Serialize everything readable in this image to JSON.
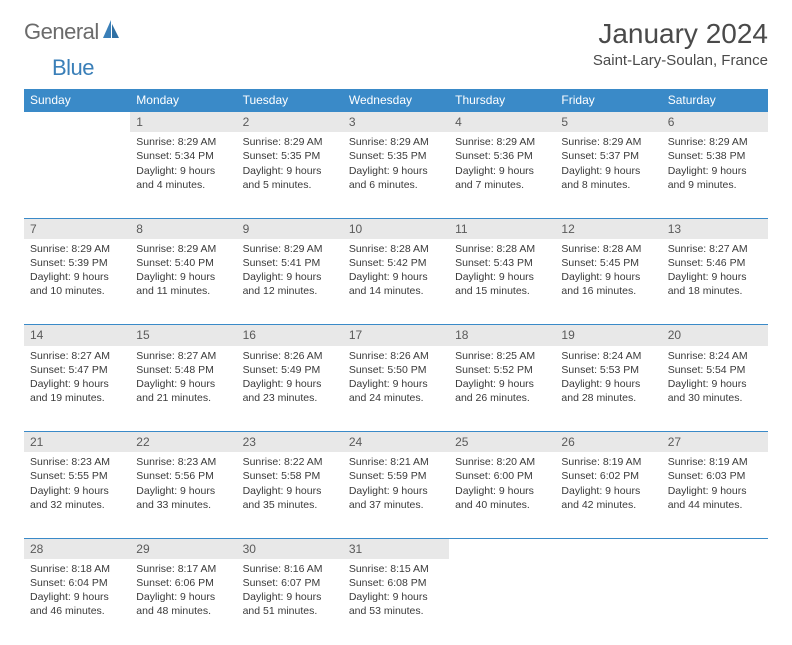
{
  "logo": {
    "part1": "General",
    "part2": "Blue"
  },
  "title": "January 2024",
  "location": "Saint-Lary-Soulan, France",
  "colors": {
    "header_bg": "#3a8ac8",
    "header_text": "#ffffff",
    "daynum_bg": "#e8e8e8",
    "border": "#3a8ac8",
    "text": "#3a3a3a",
    "logo_gray": "#6b6b6b",
    "logo_blue": "#3a7fb8"
  },
  "day_headers": [
    "Sunday",
    "Monday",
    "Tuesday",
    "Wednesday",
    "Thursday",
    "Friday",
    "Saturday"
  ],
  "first_weekday_index": 1,
  "days": [
    {
      "n": 1,
      "sunrise": "8:29 AM",
      "sunset": "5:34 PM",
      "daylight": "9 hours and 4 minutes."
    },
    {
      "n": 2,
      "sunrise": "8:29 AM",
      "sunset": "5:35 PM",
      "daylight": "9 hours and 5 minutes."
    },
    {
      "n": 3,
      "sunrise": "8:29 AM",
      "sunset": "5:35 PM",
      "daylight": "9 hours and 6 minutes."
    },
    {
      "n": 4,
      "sunrise": "8:29 AM",
      "sunset": "5:36 PM",
      "daylight": "9 hours and 7 minutes."
    },
    {
      "n": 5,
      "sunrise": "8:29 AM",
      "sunset": "5:37 PM",
      "daylight": "9 hours and 8 minutes."
    },
    {
      "n": 6,
      "sunrise": "8:29 AM",
      "sunset": "5:38 PM",
      "daylight": "9 hours and 9 minutes."
    },
    {
      "n": 7,
      "sunrise": "8:29 AM",
      "sunset": "5:39 PM",
      "daylight": "9 hours and 10 minutes."
    },
    {
      "n": 8,
      "sunrise": "8:29 AM",
      "sunset": "5:40 PM",
      "daylight": "9 hours and 11 minutes."
    },
    {
      "n": 9,
      "sunrise": "8:29 AM",
      "sunset": "5:41 PM",
      "daylight": "9 hours and 12 minutes."
    },
    {
      "n": 10,
      "sunrise": "8:28 AM",
      "sunset": "5:42 PM",
      "daylight": "9 hours and 14 minutes."
    },
    {
      "n": 11,
      "sunrise": "8:28 AM",
      "sunset": "5:43 PM",
      "daylight": "9 hours and 15 minutes."
    },
    {
      "n": 12,
      "sunrise": "8:28 AM",
      "sunset": "5:45 PM",
      "daylight": "9 hours and 16 minutes."
    },
    {
      "n": 13,
      "sunrise": "8:27 AM",
      "sunset": "5:46 PM",
      "daylight": "9 hours and 18 minutes."
    },
    {
      "n": 14,
      "sunrise": "8:27 AM",
      "sunset": "5:47 PM",
      "daylight": "9 hours and 19 minutes."
    },
    {
      "n": 15,
      "sunrise": "8:27 AM",
      "sunset": "5:48 PM",
      "daylight": "9 hours and 21 minutes."
    },
    {
      "n": 16,
      "sunrise": "8:26 AM",
      "sunset": "5:49 PM",
      "daylight": "9 hours and 23 minutes."
    },
    {
      "n": 17,
      "sunrise": "8:26 AM",
      "sunset": "5:50 PM",
      "daylight": "9 hours and 24 minutes."
    },
    {
      "n": 18,
      "sunrise": "8:25 AM",
      "sunset": "5:52 PM",
      "daylight": "9 hours and 26 minutes."
    },
    {
      "n": 19,
      "sunrise": "8:24 AM",
      "sunset": "5:53 PM",
      "daylight": "9 hours and 28 minutes."
    },
    {
      "n": 20,
      "sunrise": "8:24 AM",
      "sunset": "5:54 PM",
      "daylight": "9 hours and 30 minutes."
    },
    {
      "n": 21,
      "sunrise": "8:23 AM",
      "sunset": "5:55 PM",
      "daylight": "9 hours and 32 minutes."
    },
    {
      "n": 22,
      "sunrise": "8:23 AM",
      "sunset": "5:56 PM",
      "daylight": "9 hours and 33 minutes."
    },
    {
      "n": 23,
      "sunrise": "8:22 AM",
      "sunset": "5:58 PM",
      "daylight": "9 hours and 35 minutes."
    },
    {
      "n": 24,
      "sunrise": "8:21 AM",
      "sunset": "5:59 PM",
      "daylight": "9 hours and 37 minutes."
    },
    {
      "n": 25,
      "sunrise": "8:20 AM",
      "sunset": "6:00 PM",
      "daylight": "9 hours and 40 minutes."
    },
    {
      "n": 26,
      "sunrise": "8:19 AM",
      "sunset": "6:02 PM",
      "daylight": "9 hours and 42 minutes."
    },
    {
      "n": 27,
      "sunrise": "8:19 AM",
      "sunset": "6:03 PM",
      "daylight": "9 hours and 44 minutes."
    },
    {
      "n": 28,
      "sunrise": "8:18 AM",
      "sunset": "6:04 PM",
      "daylight": "9 hours and 46 minutes."
    },
    {
      "n": 29,
      "sunrise": "8:17 AM",
      "sunset": "6:06 PM",
      "daylight": "9 hours and 48 minutes."
    },
    {
      "n": 30,
      "sunrise": "8:16 AM",
      "sunset": "6:07 PM",
      "daylight": "9 hours and 51 minutes."
    },
    {
      "n": 31,
      "sunrise": "8:15 AM",
      "sunset": "6:08 PM",
      "daylight": "9 hours and 53 minutes."
    }
  ],
  "labels": {
    "sunrise": "Sunrise:",
    "sunset": "Sunset:",
    "daylight": "Daylight:"
  }
}
